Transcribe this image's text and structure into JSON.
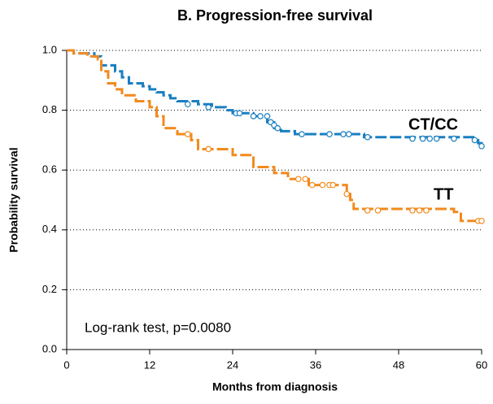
{
  "chart_data": {
    "type": "km",
    "title": "B. Progression-free survival",
    "x_label": "Months from diagnosis",
    "y_label": "Probability survival",
    "annotation": "Log-rank test, p=0.0080",
    "xlim": [
      0,
      60
    ],
    "xticks": [
      0,
      12,
      24,
      36,
      48,
      60
    ],
    "ylim": [
      0,
      1
    ],
    "yticks": [
      {
        "value": 0,
        "label": "0.0"
      },
      0.2,
      0.4,
      0.6,
      0.8,
      {
        "value": 1,
        "label": "1.0"
      }
    ],
    "grid": true,
    "series": [
      {
        "name": "CT/CC",
        "color": "#1a7fc1",
        "x": [
          0,
          1,
          4,
          5,
          7,
          8,
          9,
          11,
          12,
          13,
          14,
          15,
          16,
          19,
          21,
          23,
          24,
          27,
          29,
          30,
          31,
          33,
          43,
          59,
          59.5,
          60
        ],
        "values": [
          1.0,
          0.99,
          0.98,
          0.95,
          0.93,
          0.91,
          0.89,
          0.88,
          0.87,
          0.86,
          0.85,
          0.84,
          0.83,
          0.82,
          0.81,
          0.8,
          0.79,
          0.78,
          0.76,
          0.74,
          0.73,
          0.72,
          0.71,
          0.7,
          0.69,
          0.68
        ],
        "censor_x": [
          17.5,
          20.5,
          24.5,
          25,
          27,
          28,
          29,
          29.5,
          30,
          30.5,
          34,
          38,
          40,
          40.8,
          43.5,
          50,
          51.5,
          52.5,
          53.5,
          56,
          59,
          60
        ],
        "censor_values": [
          0.82,
          0.81,
          0.79,
          0.79,
          0.78,
          0.78,
          0.78,
          0.76,
          0.75,
          0.74,
          0.72,
          0.72,
          0.72,
          0.72,
          0.71,
          0.705,
          0.705,
          0.705,
          0.705,
          0.705,
          0.7,
          0.68
        ]
      },
      {
        "name": "TT",
        "color": "#f28a1e",
        "x": [
          0,
          1,
          3,
          4.5,
          5,
          6,
          7,
          8,
          10,
          12,
          13,
          14,
          16,
          18,
          19,
          24,
          27,
          30,
          32,
          35,
          40.5,
          41,
          41.5,
          56,
          57,
          60
        ],
        "values": [
          1.0,
          0.99,
          0.98,
          0.97,
          0.93,
          0.89,
          0.87,
          0.85,
          0.83,
          0.81,
          0.78,
          0.74,
          0.72,
          0.7,
          0.67,
          0.65,
          0.61,
          0.59,
          0.57,
          0.55,
          0.52,
          0.5,
          0.47,
          0.46,
          0.43,
          0.43
        ],
        "censor_x": [
          17.5,
          20.5,
          33.5,
          34.5,
          35.5,
          37,
          38,
          38.5,
          40.5,
          43.5,
          45,
          50,
          51,
          52,
          59.5,
          60
        ],
        "censor_values": [
          0.72,
          0.67,
          0.57,
          0.57,
          0.55,
          0.55,
          0.55,
          0.55,
          0.52,
          0.465,
          0.465,
          0.465,
          0.465,
          0.465,
          0.43,
          0.43
        ]
      }
    ]
  }
}
